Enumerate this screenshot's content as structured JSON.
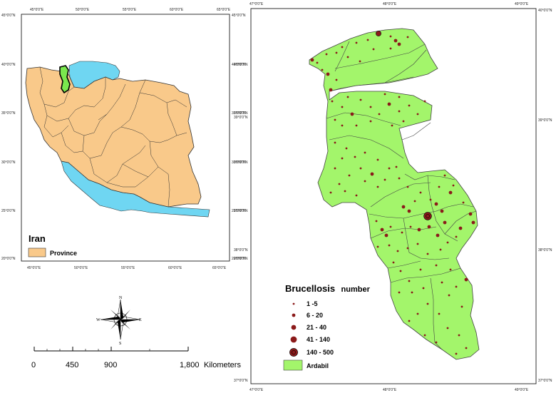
{
  "iran_map": {
    "legend_title": "Iran",
    "legend_item": "Province",
    "colors": {
      "province": "#f9c98a",
      "water": "#6fd6f2",
      "ardabil": "#7ae84e",
      "border": "#333333"
    },
    "top_ticks": [
      "45°0'0\"E",
      "50°0'0\"E",
      "55°0'0\"E",
      "60°0'0\"E",
      "65°0'0\"E"
    ],
    "bottom_ticks": [
      "45°0'0\"E",
      "50°0'0\"E",
      "55°0'0\"E",
      "60°0'0\"E",
      "65°0'0\"E"
    ],
    "left_ticks": [
      "45°0'0\"N",
      "40°0'0\"N",
      "35°0'0\"N",
      "30°0'0\"N",
      "25°0'0\"N",
      "20°0'0\"N"
    ],
    "right_ticks": [
      "45°0'0\"N",
      "40°0'0\"N",
      "35°0'0\"N",
      "30°0'0\"N",
      "25°0'0\"N",
      "20°0'0\"N"
    ]
  },
  "ardabil_map": {
    "legend_title": "Brucellosis",
    "legend_subtitle": "number",
    "classes": [
      "1 -5",
      "6 - 20",
      "21 - 40",
      "41 - 140",
      "140 - 500"
    ],
    "region_label": "Ardabil",
    "colors": {
      "fill": "#a3f56b",
      "dot": "#8b1a1a",
      "border": "#444444"
    },
    "top_ticks": [
      "47°0'0\"E",
      "48°0'0\"E",
      "49°0'0\"E"
    ],
    "bottom_ticks": [
      "47°0'0\"E",
      "48°0'0\"E",
      "49°0'0\"E"
    ],
    "left_ticks": [
      "40°0'0\"N",
      "35°0'0\"N",
      "39°0'0\"N",
      "30°0'0\"N",
      "25°0'0\"N",
      "38°0'0\"N",
      "20°0'0\"N"
    ],
    "right_ticks": [
      "40°0'0\"N",
      "39°0'0\"N",
      "38°0'0\"N",
      "37°0'0\"N"
    ],
    "bottom_left_tick": "37°0'0\"N"
  },
  "compass": {
    "n": "N",
    "s": "S",
    "e": "E",
    "w": "W"
  },
  "scale_bar": {
    "labels": [
      "0",
      "450",
      "900",
      "1,800"
    ],
    "unit": "Kilometers"
  }
}
